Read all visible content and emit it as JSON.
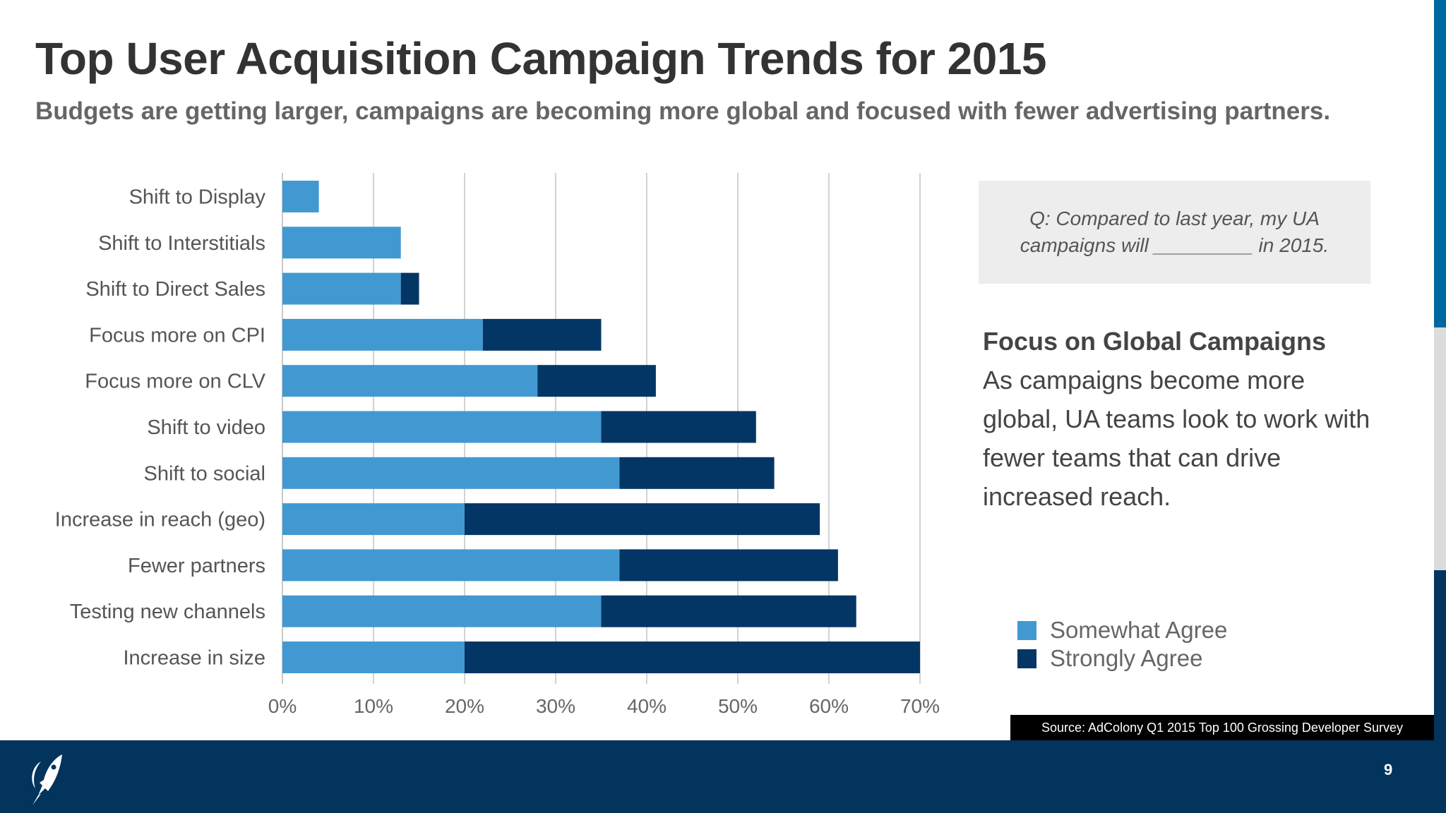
{
  "header": {
    "title": "Top User Acquisition Campaign Trends for 2015",
    "subtitle": "Budgets are getting larger, campaigns are becoming more global and focused with fewer advertising partners."
  },
  "question": "Q:  Compared to last year, my UA campaigns will _________ in 2015.",
  "focus": {
    "heading": "Focus on Global Campaigns",
    "body": "As campaigns become more global, UA teams look to work with fewer teams that can drive increased reach."
  },
  "source": "Source: AdColony Q1 2015 Top 100 Grossing Developer Survey",
  "page_number": "9",
  "logo": "rocket-logo",
  "colors": {
    "somewhat": "#4299d2",
    "strongly": "#033664",
    "footer": "#03345e",
    "accent_strip": "#0068a0"
  },
  "chart_data": {
    "type": "bar",
    "orientation": "horizontal",
    "stacked": true,
    "categories": [
      "Shift to Display",
      "Shift to Interstitials",
      "Shift to Direct Sales",
      "Focus more on CPI",
      "Focus more on CLV",
      "Shift to video",
      "Shift to social",
      "Increase in reach (geo)",
      "Fewer partners",
      "Testing new channels",
      "Increase in size"
    ],
    "series": [
      {
        "name": "Somewhat Agree",
        "values": [
          4,
          13,
          13,
          22,
          28,
          35,
          37,
          20,
          37,
          35,
          20
        ]
      },
      {
        "name": "Strongly Agree",
        "values": [
          0,
          0,
          2,
          13,
          13,
          17,
          17,
          39,
          24,
          28,
          50
        ]
      }
    ],
    "xlim": [
      0,
      70
    ],
    "xticks": [
      "0%",
      "10%",
      "20%",
      "30%",
      "40%",
      "50%",
      "60%",
      "70%"
    ],
    "grid": "vertical",
    "legend": "bottom-right"
  }
}
